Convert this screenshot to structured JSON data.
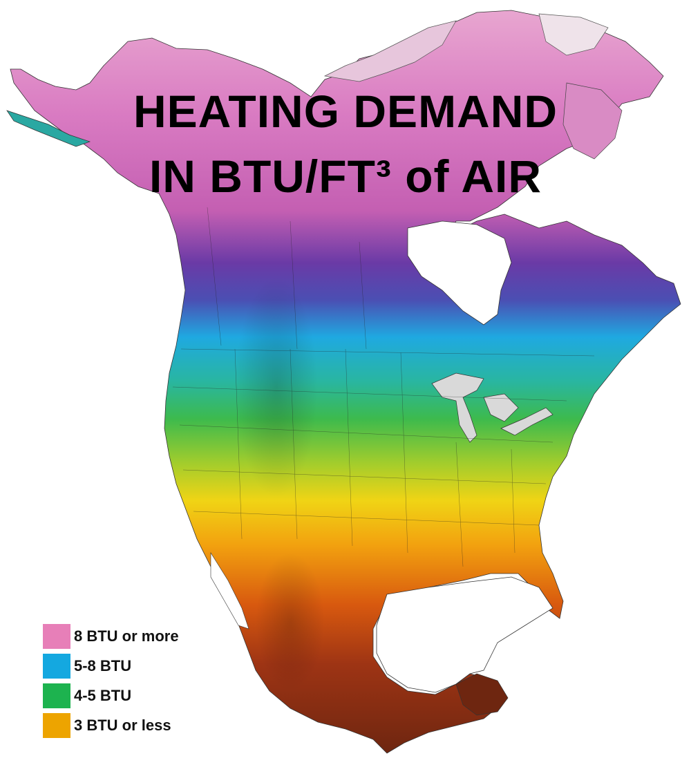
{
  "map": {
    "title_line_1": "HEATING DEMAND",
    "title_line_2": "IN BTU/FT³ of AIR",
    "legend": [
      {
        "label": "8 BTU or more",
        "color": "#e77fb8"
      },
      {
        "label": "5-8 BTU",
        "color": "#14a8e0"
      },
      {
        "label": "4-5 BTU",
        "color": "#1db34f"
      },
      {
        "label": "3 BTU or less",
        "color": "#eda400"
      }
    ]
  }
}
